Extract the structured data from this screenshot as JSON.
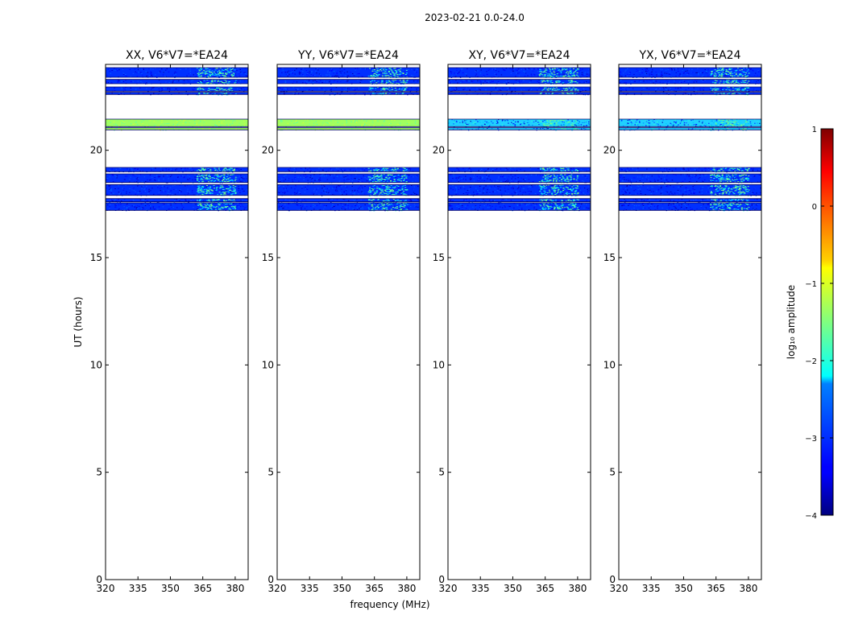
{
  "chart_data": {
    "type": "heatmap",
    "suptitle": "2023-02-21 0.0-24.0",
    "xlabel": "frequency (MHz)",
    "ylabel": "UT (hours)",
    "xlim": [
      320,
      386
    ],
    "ylim": [
      0,
      24
    ],
    "xticks": [
      320,
      335,
      350,
      365,
      380
    ],
    "yticks": [
      0,
      5,
      10,
      15,
      20
    ],
    "panels": [
      {
        "title": "XX, V6*V7=*EA24",
        "pol": "XX"
      },
      {
        "title": "YY, V6*V7=*EA24",
        "pol": "YY"
      },
      {
        "title": "XY, V6*V7=*EA24",
        "pol": "XY"
      },
      {
        "title": "YX, V6*V7=*EA24",
        "pol": "YX"
      }
    ],
    "data_bands_ut_hours": [
      [
        23.4,
        23.85
      ],
      [
        23.1,
        23.3
      ],
      [
        22.75,
        22.95
      ],
      [
        22.6,
        22.7
      ],
      [
        21.1,
        21.45
      ],
      [
        20.95,
        21.05
      ],
      [
        19.0,
        19.2
      ],
      [
        18.5,
        18.9
      ],
      [
        17.9,
        18.4
      ],
      [
        17.6,
        17.75
      ],
      [
        17.2,
        17.55
      ]
    ],
    "rfi_band_mhz": [
      362,
      380
    ],
    "colorbar": {
      "label": "log₁₀ amplitude",
      "range": [
        -4,
        1
      ],
      "ticks": [
        "−4",
        "−3",
        "−2",
        "−1",
        "0",
        "1"
      ]
    }
  }
}
